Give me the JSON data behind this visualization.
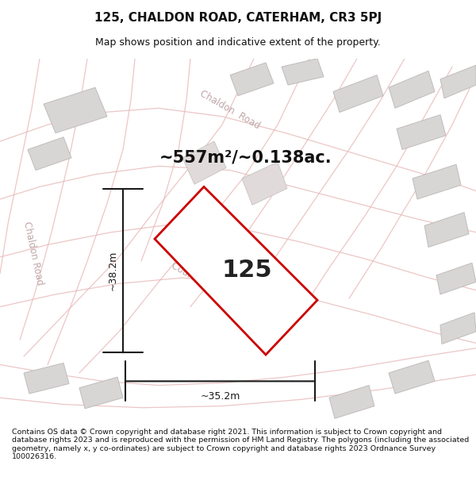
{
  "title": "125, CHALDON ROAD, CATERHAM, CR3 5PJ",
  "subtitle": "Map shows position and indicative extent of the property.",
  "area_label": "~557m²/~0.138ac.",
  "number_label": "125",
  "width_label": "~35.2m",
  "height_label": "~38.2m",
  "footer": "Contains OS data © Crown copyright and database right 2021. This information is subject to Crown copyright and database rights 2023 and is reproduced with the permission of HM Land Registry. The polygons (including the associated geometry, namely x, y co-ordinates) are subject to Crown copyright and database rights 2023 Ordnance Survey 100026316.",
  "map_bg": "#f7f5f5",
  "building_fc": "#d8d5d5",
  "building_ec": "#c0bcbc",
  "road_line_color": "#e8b8b8",
  "plot_edge": "#cc0000",
  "plot_fill": "#ffffff",
  "dim_color": "#1a1a1a",
  "road_label_color": "#c0a8a8",
  "title_fs": 11,
  "subtitle_fs": 9,
  "area_fs": 15,
  "number_fs": 22,
  "dim_fs": 9,
  "footer_fs": 6.8
}
